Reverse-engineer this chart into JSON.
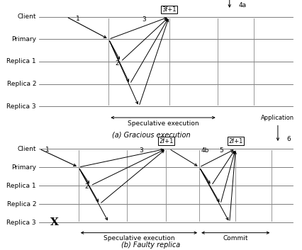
{
  "fig_width": 4.26,
  "fig_height": 3.53,
  "dpi": 100,
  "rows": [
    "Client",
    "Primary",
    "Replica 1",
    "Replica 2",
    "Replica 3"
  ],
  "bg_color": "#ffffff",
  "label_a": "(a) Gracious execution",
  "label_b": "(b) Faulty replica",
  "spec_label": "Speculative execution",
  "commit_label": "Commit",
  "app_label": "Application"
}
